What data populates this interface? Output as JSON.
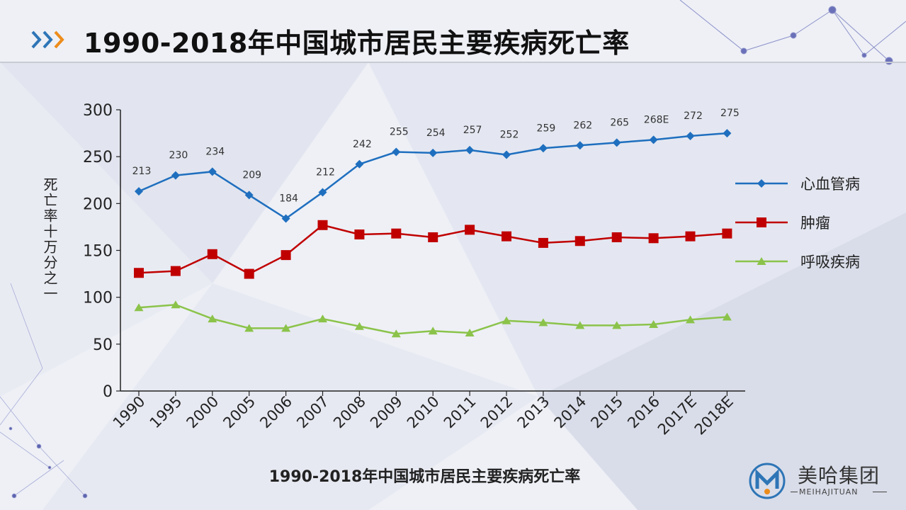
{
  "page": {
    "title": "1990-2018年中国城市居民主要疾病死亡率"
  },
  "colors": {
    "cardio": "#1f6fbf",
    "tumor": "#c00000",
    "respiratory": "#8bc34a",
    "arrow1": "#2e75b6",
    "arrow2": "#ed8c1a"
  },
  "chart_data": {
    "type": "line",
    "title": "1990-2018年中国城市居民主要疾病死亡率",
    "ylabel": "死亡率十万分之一",
    "xlabel": "",
    "ylim": [
      0,
      300
    ],
    "yticks": [
      0,
      50,
      100,
      150,
      200,
      250,
      300
    ],
    "categories": [
      "1990",
      "1995",
      "2000",
      "2005",
      "2006",
      "2007",
      "2008",
      "2009",
      "2010",
      "2011",
      "2012",
      "2013",
      "2014",
      "2015",
      "2016",
      "2017E",
      "2018E"
    ],
    "legend_position": "right",
    "series": [
      {
        "name": "心血管病",
        "marker": "diamond",
        "color": "#1f6fbf",
        "values": [
          213,
          230,
          234,
          209,
          184,
          212,
          242,
          255,
          254,
          257,
          252,
          259,
          262,
          265,
          268,
          272,
          275
        ],
        "labels": [
          "213",
          "230",
          "234",
          "209",
          "184",
          "212",
          "242",
          "255",
          "254",
          "257",
          "252",
          "259",
          "262",
          "265",
          "268E",
          "272",
          "275"
        ]
      },
      {
        "name": "肿瘤",
        "marker": "square",
        "color": "#c00000",
        "values": [
          126,
          128,
          146,
          125,
          145,
          177,
          167,
          168,
          164,
          172,
          165,
          158,
          160,
          164,
          163,
          165,
          168
        ]
      },
      {
        "name": "呼吸疾病",
        "marker": "triangle",
        "color": "#8bc34a",
        "values": [
          89,
          92,
          77,
          67,
          67,
          77,
          69,
          61,
          64,
          62,
          75,
          73,
          70,
          70,
          71,
          76,
          79
        ]
      }
    ]
  },
  "caption": "1990-2018年中国城市居民主要疾病死亡率",
  "logo": {
    "name": "美哈集团",
    "sub": "MEIHAJITUAN"
  }
}
